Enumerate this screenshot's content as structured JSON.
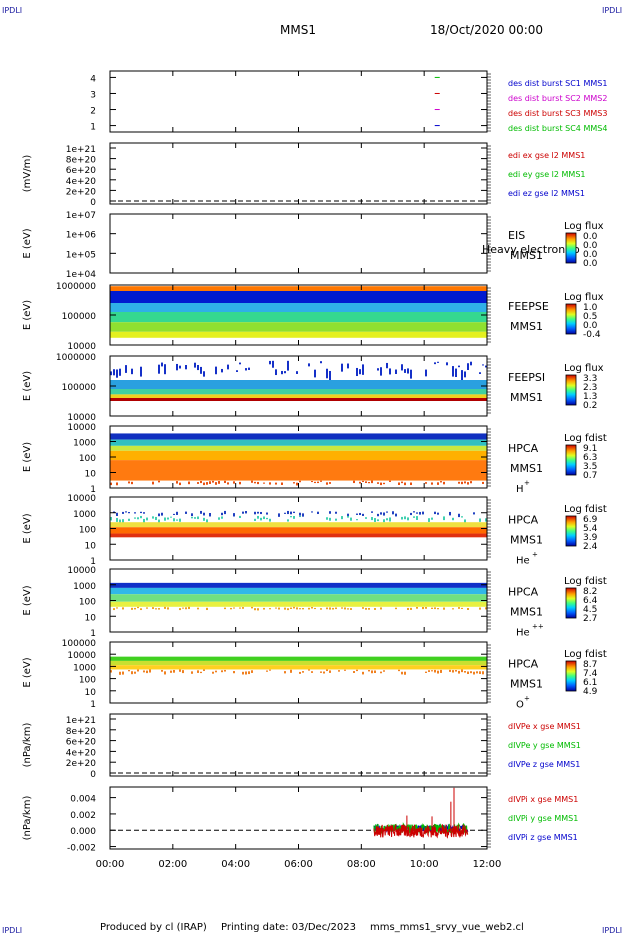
{
  "header": {
    "corner_mark": "IPDLI",
    "spacecraft": "MMS1",
    "datetime": "18/Oct/2020 00:00"
  },
  "footer": {
    "produced_by": "Produced by cl (IRAP)",
    "printing_date": "Printing date: 03/Dec/2023",
    "script_name": "mms_mms1_srvy_vue_web2.cl"
  },
  "xaxis": {
    "range_hours": [
      0,
      12
    ],
    "ticks": [
      {
        "h": 0,
        "label": "00:00"
      },
      {
        "h": 2,
        "label": "02:00"
      },
      {
        "h": 4,
        "label": "04:00"
      },
      {
        "h": 6,
        "label": "06:00"
      },
      {
        "h": 8,
        "label": "08:00"
      },
      {
        "h": 10,
        "label": "10:00"
      },
      {
        "h": 12,
        "label": "12:00"
      }
    ]
  },
  "chart_data": [
    {
      "type": "scatter",
      "id": "burst",
      "ylabel": "",
      "yticks": [
        "1",
        "2",
        "3",
        "4"
      ],
      "ylim": [
        0.6,
        4.4
      ],
      "series": [
        {
          "name": "des dist burst SC1 MMS1",
          "color": "#0000cc",
          "x": [
            10.4
          ],
          "y": [
            1
          ]
        },
        {
          "name": "des dist burst SC2 MMS2",
          "color": "#cc00cc",
          "x": [
            10.4
          ],
          "y": [
            2
          ]
        },
        {
          "name": "des dist burst SC3 MMS3",
          "color": "#cc0000",
          "x": [
            10.4
          ],
          "y": [
            3
          ]
        },
        {
          "name": "des dist burst SC4 MMS4",
          "color": "#00bb00",
          "x": [
            10.4
          ],
          "y": [
            4
          ]
        }
      ]
    },
    {
      "type": "line",
      "id": "edi",
      "ylabel": "(mV/m)",
      "yticks": [
        "1e+21",
        "8e+20",
        "6e+20",
        "4e+20",
        "2e+20",
        "0"
      ],
      "series": [
        {
          "name": "edi ex gse l2 MMS1",
          "color": "#cc0000"
        },
        {
          "name": "edi ey gse l2 MMS1",
          "color": "#00bb00"
        },
        {
          "name": "edi ez gse l2 MMS1",
          "color": "#0000cc"
        }
      ]
    },
    {
      "type": "heatmap",
      "id": "eis",
      "ylabel": "E (eV)",
      "yticks": [
        "1e+07",
        "1e+06",
        "1e+05",
        "1e+04"
      ],
      "instrument": "EIS",
      "species": "Heavy electron to",
      "spacecraft": "MMS1",
      "colorbar_title": "Log flux",
      "colorbar_ticks": [
        "0.0",
        "0.0",
        "0.0",
        "0.0"
      ],
      "data_coverage_hours": [
        0,
        0
      ],
      "bands": []
    },
    {
      "type": "heatmap",
      "id": "feepse",
      "ylabel": "E (eV)",
      "yticks": [
        "1000000",
        "100000",
        "10000"
      ],
      "instrument": "FEEPSE",
      "spacecraft": "MMS1",
      "colorbar_title": "Log flux",
      "colorbar_ticks": [
        "1.0",
        "0.5",
        "0.0",
        "-0.4"
      ],
      "data_coverage_hours": [
        0,
        12
      ],
      "bands": [
        {
          "from": 0.02,
          "to": 0.1,
          "color": "#ff7700"
        },
        {
          "from": 0.1,
          "to": 0.3,
          "color": "#001ad0"
        },
        {
          "from": 0.3,
          "to": 0.45,
          "color": "#2fb0e8"
        },
        {
          "from": 0.45,
          "to": 0.62,
          "color": "#35d890"
        },
        {
          "from": 0.62,
          "to": 0.78,
          "color": "#8fe030"
        },
        {
          "from": 0.78,
          "to": 0.88,
          "color": "#e4f020"
        }
      ]
    },
    {
      "type": "heatmap",
      "id": "feepsi",
      "ylabel": "E (eV)",
      "yticks": [
        "1000000",
        "100000",
        "10000"
      ],
      "instrument": "FEEPSI",
      "spacecraft": "MMS1",
      "colorbar_title": "Log flux",
      "colorbar_ticks": [
        "3.3",
        "2.3",
        "1.3",
        "0.2"
      ],
      "data_coverage_hours": [
        0,
        12
      ],
      "bands": [
        {
          "from": 0.08,
          "to": 0.4,
          "color": "#1530c8",
          "sparse": true
        },
        {
          "from": 0.4,
          "to": 0.55,
          "color": "#2aa0e0"
        },
        {
          "from": 0.55,
          "to": 0.64,
          "color": "#40d0a0"
        },
        {
          "from": 0.64,
          "to": 0.7,
          "color": "#f0d020"
        },
        {
          "from": 0.7,
          "to": 0.75,
          "color": "#b00000"
        }
      ]
    },
    {
      "type": "heatmap",
      "id": "hpca_h",
      "ylabel": "E (eV)",
      "yticks": [
        "10000",
        "1000",
        "100",
        "10",
        "1"
      ],
      "instrument": "HPCA",
      "spacecraft": "MMS1",
      "species": "H",
      "species_charge": "+",
      "colorbar_title": "Log fdist",
      "colorbar_ticks": [
        "9.1",
        "6.3",
        "3.5",
        "0.7"
      ],
      "data_coverage_hours": [
        0,
        12
      ],
      "bands": [
        {
          "from": 0.12,
          "to": 0.22,
          "color": "#1030c0"
        },
        {
          "from": 0.22,
          "to": 0.32,
          "color": "#30c0c0"
        },
        {
          "from": 0.32,
          "to": 0.4,
          "color": "#c8e840"
        },
        {
          "from": 0.4,
          "to": 0.55,
          "color": "#ffb000"
        },
        {
          "from": 0.55,
          "to": 0.88,
          "color": "#ff7a10"
        },
        {
          "from": 0.88,
          "to": 0.94,
          "color": "#e85010",
          "sparse": true
        }
      ]
    },
    {
      "type": "heatmap",
      "id": "hpca_he",
      "ylabel": "E (eV)",
      "yticks": [
        "10000",
        "1000",
        "100",
        "10",
        "1"
      ],
      "instrument": "HPCA",
      "spacecraft": "MMS1",
      "species": "He",
      "species_charge": "+",
      "colorbar_title": "Log fdist",
      "colorbar_ticks": [
        "6.9",
        "5.4",
        "3.9",
        "2.4"
      ],
      "data_coverage_hours": [
        0,
        12
      ],
      "bands": [
        {
          "from": 0.22,
          "to": 0.3,
          "color": "#2040c0",
          "sparse": true
        },
        {
          "from": 0.3,
          "to": 0.4,
          "color": "#40d0b0",
          "sparse": true
        },
        {
          "from": 0.4,
          "to": 0.48,
          "color": "#f0e040"
        },
        {
          "from": 0.48,
          "to": 0.58,
          "color": "#ff6a00"
        },
        {
          "from": 0.58,
          "to": 0.64,
          "color": "#e03010"
        }
      ]
    },
    {
      "type": "heatmap",
      "id": "hpca_hepp",
      "ylabel": "E (eV)",
      "yticks": [
        "10000",
        "1000",
        "100",
        "10",
        "1"
      ],
      "instrument": "HPCA",
      "spacecraft": "MMS1",
      "species": "He",
      "species_charge": "++",
      "colorbar_title": "Log fdist",
      "colorbar_ticks": [
        "8.2",
        "6.4",
        "4.5",
        "2.7"
      ],
      "data_coverage_hours": [
        0,
        12
      ],
      "bands": [
        {
          "from": 0.22,
          "to": 0.3,
          "color": "#1030c8"
        },
        {
          "from": 0.3,
          "to": 0.4,
          "color": "#30b8e8"
        },
        {
          "from": 0.4,
          "to": 0.52,
          "color": "#70e080"
        },
        {
          "from": 0.52,
          "to": 0.6,
          "color": "#e8f040"
        },
        {
          "from": 0.6,
          "to": 0.64,
          "color": "#f0a020",
          "sparse": true
        }
      ]
    },
    {
      "type": "heatmap",
      "id": "hpca_o",
      "ylabel": "E (eV)",
      "yticks": [
        "100000",
        "10000",
        "1000",
        "100",
        "10",
        "1"
      ],
      "instrument": "HPCA",
      "spacecraft": "MMS1",
      "species": "O",
      "species_charge": "+",
      "colorbar_title": "Log fdist",
      "colorbar_ticks": [
        "8.7",
        "7.4",
        "6.1",
        "4.9"
      ],
      "data_coverage_hours": [
        0,
        12
      ],
      "bands": [
        {
          "from": 0.24,
          "to": 0.31,
          "color": "#40d020"
        },
        {
          "from": 0.31,
          "to": 0.38,
          "color": "#c8e030"
        },
        {
          "from": 0.38,
          "to": 0.45,
          "color": "#ffd020"
        },
        {
          "from": 0.45,
          "to": 0.52,
          "color": "#f08020",
          "sparse": true
        }
      ]
    },
    {
      "type": "line",
      "id": "divpe",
      "ylabel": "(nPa/km)",
      "yticks": [
        "1e+21",
        "8e+20",
        "6e+20",
        "4e+20",
        "2e+20",
        "0"
      ],
      "series": [
        {
          "name": "dIVPe x gse MMS1",
          "color": "#cc0000"
        },
        {
          "name": "dIVPe y gse MMS1",
          "color": "#00bb00"
        },
        {
          "name": "dIVPe z gse MMS1",
          "color": "#0000cc"
        }
      ]
    },
    {
      "type": "line",
      "id": "divpi",
      "ylabel": "(nPa/km)",
      "yticks": [
        "0.004",
        "0.002",
        "0.000",
        "-0.002"
      ],
      "ylim": [
        -0.0023,
        0.0053
      ],
      "data_coverage_hours": [
        8.4,
        11.4
      ],
      "series": [
        {
          "name": "dIVPi x gse MMS1",
          "color": "#cc0000",
          "amp": 0.0008
        },
        {
          "name": "dIVPi y gse MMS1",
          "color": "#00bb00",
          "amp": 0.0006
        },
        {
          "name": "dIVPi z gse MMS1",
          "color": "#0000cc",
          "amp": 0.0004
        }
      ],
      "spikes": [
        {
          "x": 9.45,
          "y": 0.0018
        },
        {
          "x": 10.25,
          "y": 0.0017
        },
        {
          "x": 10.85,
          "y": 0.0035
        },
        {
          "x": 10.95,
          "y": 0.0052
        }
      ]
    }
  ]
}
